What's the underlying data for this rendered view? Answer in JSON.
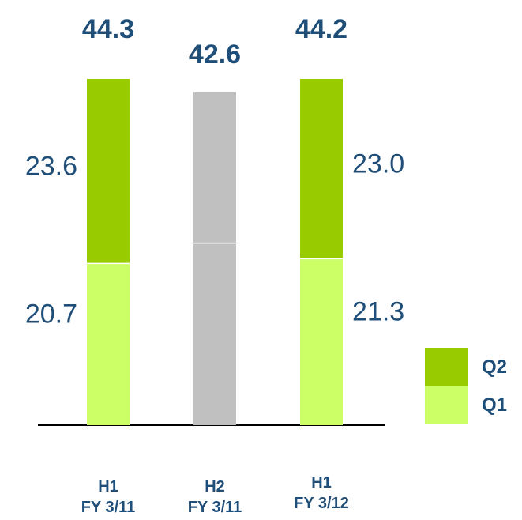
{
  "chart_data": {
    "type": "bar",
    "stacked": true,
    "categories": [
      [
        "H1",
        "FY 3/11"
      ],
      [
        "H2",
        "FY 3/11"
      ],
      [
        "H1",
        "FY 3/12"
      ]
    ],
    "totals": [
      "44.3",
      "42.6",
      "44.2"
    ],
    "bars": [
      {
        "q1": 20.7,
        "q2": 23.6,
        "q1_label": "20.7",
        "q2_label": "23.6",
        "style": "green"
      },
      {
        "q1": 23.3,
        "q2": 19.3,
        "q1_label": "",
        "q2_label": "",
        "style": "gray"
      },
      {
        "q1": 21.3,
        "q2": 23.0,
        "q1_label": "21.3",
        "q2_label": "23.0",
        "style": "green"
      }
    ],
    "series": [
      {
        "name": "Q2",
        "color": "#99cc00"
      },
      {
        "name": "Q1",
        "color": "#ccff66"
      }
    ],
    "gray_color": "#c0c0c0",
    "ylim": [
      0,
      48
    ],
    "legend_position": "bottom-right"
  }
}
